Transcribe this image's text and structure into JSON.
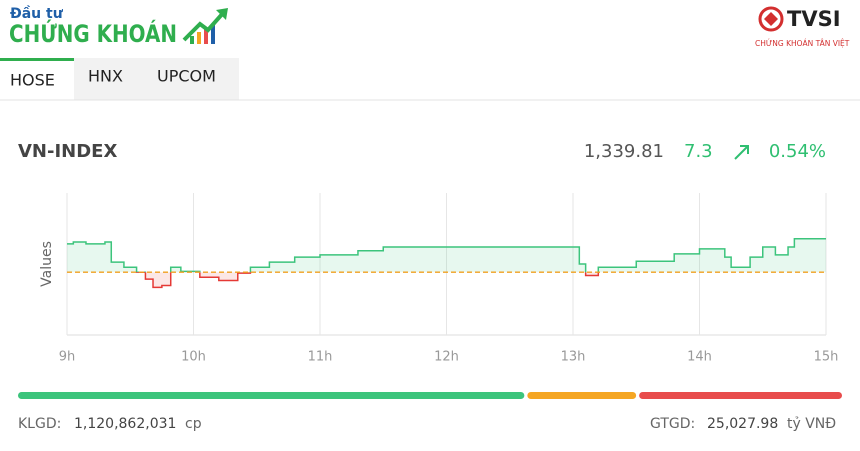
{
  "header": {
    "logo_top": "Đầu tư",
    "logo_main": "CHỨNG KHOÁN",
    "partner": "TVSI",
    "partner_sub": "CHỨNG KHOÁN TÂN VIỆT"
  },
  "tabs": [
    "HOSE",
    "HNX",
    "UPCOM"
  ],
  "index": {
    "name": "VN-INDEX",
    "value": "1,339.81",
    "change": "7.3",
    "change_pct": "0.54%"
  },
  "chart_data": {
    "type": "line",
    "y_label": "Values",
    "x": [
      9.0,
      9.05,
      9.15,
      9.3,
      9.35,
      9.45,
      9.55,
      9.62,
      9.68,
      9.75,
      9.82,
      9.9,
      10.05,
      10.2,
      10.35,
      10.45,
      10.6,
      10.8,
      11.0,
      11.3,
      11.5,
      13.0,
      13.05,
      13.1,
      13.2,
      13.5,
      13.8,
      14.0,
      14.1,
      14.2,
      14.25,
      14.4,
      14.5,
      14.6,
      14.7,
      14.75,
      15.0
    ],
    "series": [
      {
        "color": "#3cc47c",
        "values": [
          1338.7,
          1339.1,
          1338.7,
          1339.1,
          1334.7,
          1333.6,
          1332.5,
          1331.0,
          1329.2,
          1329.6,
          1333.6,
          1332.7,
          1331.4,
          1330.7,
          1332.3,
          1333.6,
          1334.7,
          1335.8,
          1336.3,
          1337.2,
          1338.0,
          1338.0,
          1334.3,
          1331.8,
          1333.6,
          1334.9,
          1336.5,
          1337.6,
          1337.6,
          1335.8,
          1333.6,
          1335.8,
          1338.0,
          1336.3,
          1338.0,
          1339.8,
          1339.81
        ]
      }
    ],
    "reference": 1332.51,
    "down_color": "#e53935",
    "reference_color": "#f0a020",
    "xlim": [
      9,
      15
    ],
    "ylim": [
      1318.8,
      1349.8
    ],
    "xticks": [
      {
        "value": 9,
        "label": "9h"
      },
      {
        "value": 10,
        "label": "10h"
      },
      {
        "value": 11,
        "label": "11h"
      },
      {
        "value": 12,
        "label": "12h"
      },
      {
        "value": 13,
        "label": "13h"
      },
      {
        "value": 14,
        "label": "14h"
      },
      {
        "value": 15,
        "label": "15h"
      }
    ],
    "grid": true
  },
  "breadth": [
    {
      "color": "#3cc47c",
      "share": 61.9
    },
    {
      "color": "#f5a623",
      "share": 13.3
    },
    {
      "color": "#e84c4c",
      "share": 24.8
    }
  ],
  "footer": {
    "volume_label": "KLGD:",
    "volume": "1,120,862,031",
    "volume_unit": "cp",
    "value_label": "GTGD:",
    "value": "25,027.98",
    "value_unit": "tỷ VNĐ"
  }
}
